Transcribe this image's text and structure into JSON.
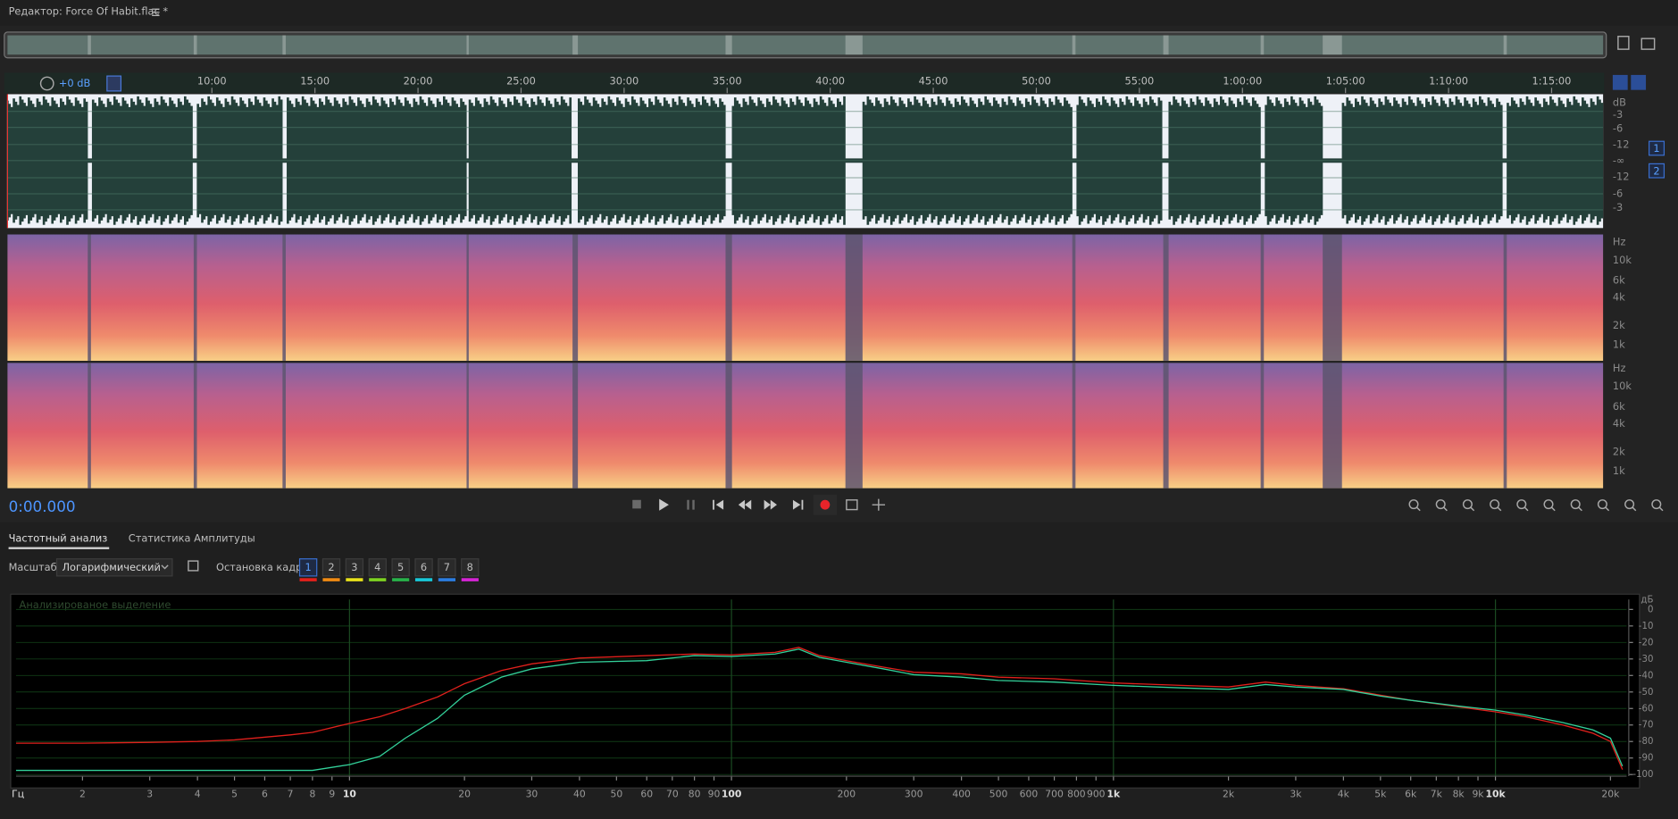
{
  "header": {
    "title": "Редактор: Force Of Habit.flac *"
  },
  "timeline": {
    "gain": "+0 dB",
    "marks": [
      "10:00",
      "15:00",
      "20:00",
      "25:00",
      "30:00",
      "35:00",
      "40:00",
      "45:00",
      "50:00",
      "55:00",
      "1:00:00",
      "1:05:00",
      "1:10:00",
      "1:15:00"
    ]
  },
  "waveform_scale": [
    "dB",
    "-3",
    "-6",
    "-12",
    "-∞",
    "-12",
    "-6",
    "-3"
  ],
  "channels": [
    "1",
    "2"
  ],
  "spectrogram_scale": [
    "Hz",
    "10k",
    "6k",
    "4k",
    "2k",
    "1k"
  ],
  "transport": {
    "time": "0:00.000"
  },
  "tabs": [
    "Частотный анализ",
    "Статистика Амплитуды"
  ],
  "controls": {
    "scale_label": "Масштаб:",
    "scale_value": "Логарифмический",
    "hold_label": "Остановка кадра:",
    "hold_buttons": [
      "1",
      "2",
      "3",
      "4",
      "5",
      "6",
      "7",
      "8"
    ]
  },
  "chart_data": {
    "type": "line",
    "annotation": "Анализированое выделение",
    "x_label": "Гц",
    "y_label": "дБ",
    "log_x": true,
    "grid": true,
    "x": [
      1.34,
      2,
      3,
      4,
      5,
      7,
      8,
      10,
      12,
      14,
      17,
      20,
      25,
      30,
      40,
      60,
      80,
      100,
      130,
      150,
      170,
      200,
      250,
      300,
      400,
      500,
      700,
      1000,
      1500,
      2000,
      2500,
      3000,
      4000,
      5000,
      6000,
      8000,
      10000,
      12000,
      15000,
      18000,
      20000,
      21500
    ],
    "series": [
      {
        "name": "1",
        "color": "#e0201c",
        "values": [
          -81,
          -81,
          -80.5,
          -80,
          -79,
          -76,
          -74.5,
          -69,
          -65,
          -60,
          -53,
          -45,
          -37,
          -33,
          -29.5,
          -28,
          -27,
          -27.5,
          -26,
          -23,
          -28,
          -31,
          -35,
          -38,
          -39,
          -41,
          -42,
          -44.5,
          -46,
          -47,
          -44,
          -46,
          -48,
          -52,
          -55,
          -59,
          -62,
          -65,
          -70,
          -75,
          -80,
          -97
        ]
      },
      {
        "name": "2",
        "color": "#33d19a",
        "values": [
          -97.5,
          -97.5,
          -97.5,
          -97.5,
          -97.5,
          -97.5,
          -97.5,
          -94,
          -89,
          -78,
          -66,
          -52,
          -41,
          -36,
          -32,
          -31,
          -28,
          -28.5,
          -27,
          -24,
          -29,
          -32,
          -36,
          -39.5,
          -41,
          -43,
          -44,
          -46,
          -47.5,
          -48.5,
          -45.5,
          -47,
          -48.5,
          -52.5,
          -55,
          -58.5,
          -61,
          -64,
          -68.5,
          -73,
          -78,
          -95
        ]
      }
    ],
    "xlim": [
      1.34,
      22050
    ],
    "ylim": [
      -101,
      6
    ],
    "xticks": [
      2,
      3,
      4,
      5,
      6,
      7,
      8,
      9,
      10,
      20,
      30,
      40,
      50,
      60,
      70,
      80,
      90,
      100,
      200,
      300,
      400,
      500,
      600,
      700,
      800,
      900,
      {
        "value": 1000,
        "label": "1k"
      },
      {
        "value": 2000,
        "label": "2k"
      },
      {
        "value": 3000,
        "label": "3k"
      },
      {
        "value": 4000,
        "label": "4k"
      },
      {
        "value": 5000,
        "label": "5k"
      },
      {
        "value": 6000,
        "label": "6k"
      },
      {
        "value": 7000,
        "label": "7k"
      },
      {
        "value": 8000,
        "label": "8k"
      },
      {
        "value": 9000,
        "label": "9k"
      },
      {
        "value": 10000,
        "label": "10k"
      },
      {
        "value": 20000,
        "label": "20k"
      }
    ],
    "yticks": [
      0,
      -10,
      -20,
      -30,
      -40,
      -50,
      -60,
      -70,
      -80,
      -90,
      -100
    ]
  }
}
